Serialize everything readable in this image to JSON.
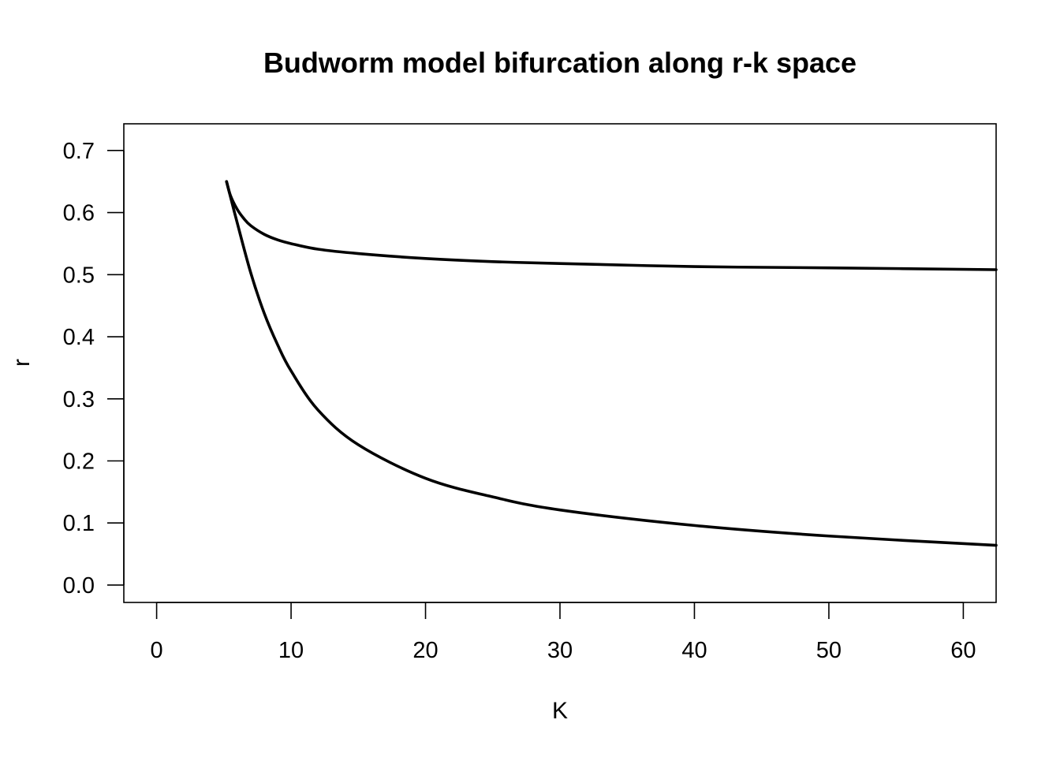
{
  "chart_data": {
    "type": "line",
    "title": "Budworm model bifurcation along r-k space",
    "xlabel": "K",
    "ylabel": "r",
    "xlim": [
      -2.44,
      62.44
    ],
    "ylim": [
      -0.028,
      0.743
    ],
    "xticks": [
      0,
      10,
      20,
      30,
      40,
      50,
      60
    ],
    "xtick_labels": [
      "0",
      "10",
      "20",
      "30",
      "40",
      "50",
      "60"
    ],
    "yticks": [
      0.0,
      0.1,
      0.2,
      0.3,
      0.4,
      0.5,
      0.6,
      0.7
    ],
    "ytick_labels": [
      "0.0",
      "0.1",
      "0.2",
      "0.3",
      "0.4",
      "0.5",
      "0.6",
      "0.7"
    ],
    "grid": false,
    "line_color": "#000000",
    "series": [
      {
        "x": [
          5.2,
          5.5,
          6,
          6.5,
          7,
          8,
          9,
          10,
          12,
          15,
          20,
          25,
          30,
          40,
          50,
          62.44
        ],
        "y": [
          0.65,
          0.627,
          0.605,
          0.59,
          0.579,
          0.565,
          0.556,
          0.55,
          0.541,
          0.534,
          0.526,
          0.521,
          0.518,
          0.513,
          0.511,
          0.508
        ]
      },
      {
        "x": [
          5.2,
          6,
          7,
          8,
          9,
          10,
          12,
          15,
          20,
          25,
          30,
          40,
          50,
          62.44
        ],
        "y": [
          0.65,
          0.583,
          0.503,
          0.438,
          0.387,
          0.345,
          0.282,
          0.226,
          0.172,
          0.142,
          0.121,
          0.096,
          0.079,
          0.064
        ]
      }
    ]
  }
}
